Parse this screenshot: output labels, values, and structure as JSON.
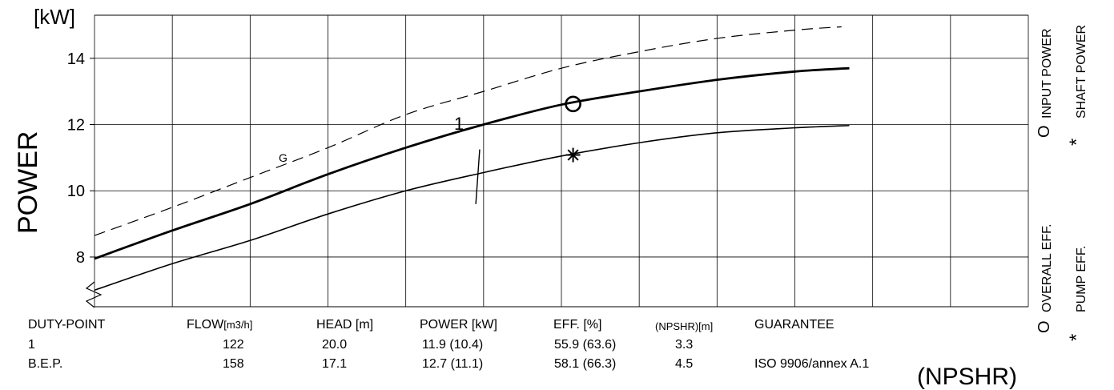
{
  "chart_data": {
    "type": "line",
    "ylabel": "POWER",
    "yunit": "[kW]",
    "ylim": [
      6.5,
      15.3
    ],
    "yticks": [
      "8",
      "10",
      "12",
      "14"
    ],
    "ytick_values": [
      8,
      10,
      12,
      14
    ],
    "xlim": [
      0,
      12
    ],
    "grid": true,
    "series": [
      {
        "name": "G",
        "style": "dashed",
        "x": [
          0,
          1,
          2,
          3,
          4,
          5,
          6,
          7,
          8,
          9,
          9.6
        ],
        "y": [
          8.65,
          9.5,
          10.4,
          11.3,
          12.3,
          13.0,
          13.7,
          14.2,
          14.6,
          14.85,
          14.95
        ]
      },
      {
        "name": "1",
        "style": "thick",
        "x": [
          0,
          1,
          2,
          3,
          4,
          5,
          6,
          7,
          8,
          9,
          9.7
        ],
        "y": [
          7.95,
          8.8,
          9.6,
          10.5,
          11.3,
          12.0,
          12.6,
          13.0,
          13.35,
          13.6,
          13.7
        ]
      },
      {
        "name": "",
        "style": "thin",
        "x": [
          0,
          1,
          2,
          3,
          4,
          5,
          6,
          7,
          8,
          9,
          9.7
        ],
        "y": [
          7.0,
          7.8,
          8.5,
          9.3,
          10.0,
          10.55,
          11.05,
          11.45,
          11.75,
          11.9,
          11.97
        ]
      }
    ],
    "markers": [
      {
        "type": "circle",
        "x": 6.15,
        "y": 12.62
      },
      {
        "type": "asterisk",
        "x": 6.15,
        "y": 11.08
      }
    ],
    "annotations": [
      {
        "text": "1",
        "x": 4.6,
        "y": 12.3
      },
      {
        "text": "G",
        "x": 2.45,
        "y": 11.1
      }
    ],
    "legend": {
      "top": [
        "INPUT POWER",
        "SHAFT POWER"
      ],
      "bottom": [
        "OVERALL EFF.",
        "PUMP EFF."
      ],
      "circle_symbol": "O",
      "star_symbol": "*"
    }
  },
  "table": {
    "headers": {
      "duty": "DUTY-POINT",
      "flow": "FLOW",
      "flow_unit": "[m3/h]",
      "head": "HEAD [m]",
      "power": "POWER [kW]",
      "eff": "EFF. [%]",
      "npshr": "(NPSHR)[m]",
      "guarantee": "GUARANTEE"
    },
    "rows": [
      {
        "duty": "1",
        "flow": "122",
        "head": "20.0",
        "power": "11.9 (10.4)",
        "eff": "55.9  (63.6)",
        "npshr": "3.3",
        "guarantee": ""
      },
      {
        "duty": "B.E.P.",
        "flow": "158",
        "head": "17.1",
        "power": "12.7 (11.1)",
        "eff": "58.1  (66.3)",
        "npshr": "4.5",
        "guarantee": "ISO 9906/annex A.1"
      }
    ],
    "footer_partial": "(NPSHR)"
  }
}
